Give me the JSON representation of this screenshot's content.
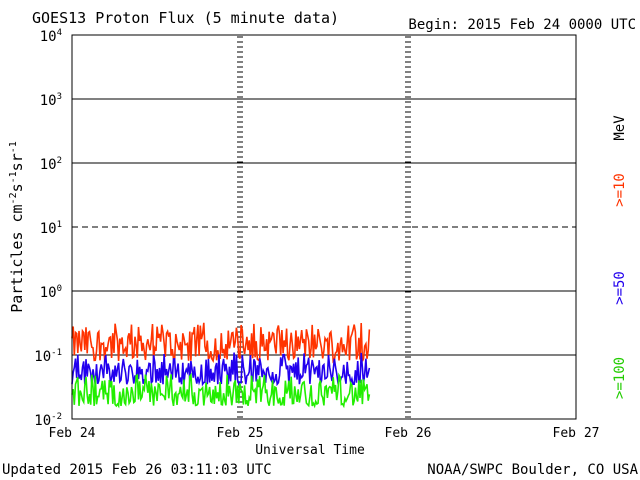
{
  "chart_data": {
    "type": "line",
    "title": "GOES13 Proton Flux (5 minute data)",
    "begin_label": "Begin: 2015 Feb 24 0000 UTC",
    "xlabel": "Universal Time",
    "ylabel_parts": {
      "prefix": "Particles cm",
      "exp1": "-2",
      "mid1": "s",
      "exp2": "-1",
      "mid2": "sr",
      "exp3": "-1"
    },
    "y_scale": "log",
    "ylim": [
      0.01,
      10000
    ],
    "y_ticks": [
      {
        "base": "10",
        "exp": "4",
        "value": 10000
      },
      {
        "base": "10",
        "exp": "3",
        "value": 1000
      },
      {
        "base": "10",
        "exp": "2",
        "value": 100
      },
      {
        "base": "10",
        "exp": "1",
        "value": 10
      },
      {
        "base": "10",
        "exp": "0",
        "value": 1
      },
      {
        "base": "10",
        "exp": "-1",
        "value": 0.1
      },
      {
        "base": "10",
        "exp": "-2",
        "value": 0.01
      }
    ],
    "x_ticks": [
      "Feb 24",
      "Feb 25",
      "Feb 26",
      "Feb 27"
    ],
    "xlim_days": [
      0,
      3
    ],
    "data_end_day": 1.77,
    "legend_unit": "MeV",
    "series": [
      {
        "name": ">=10",
        "color": "#ff3300",
        "base_value": 0.15,
        "min": 0.08,
        "max": 0.32
      },
      {
        "name": ">=50",
        "color": "#2200ee",
        "base_value": 0.055,
        "min": 0.035,
        "max": 0.11
      },
      {
        "name": ">=100",
        "color": "#22ee00",
        "base_value": 0.025,
        "min": 0.016,
        "max": 0.05
      }
    ],
    "footer_left": "Updated 2015 Feb 26 03:11:03 UTC",
    "footer_right": "NOAA/SWPC Boulder, CO USA"
  }
}
